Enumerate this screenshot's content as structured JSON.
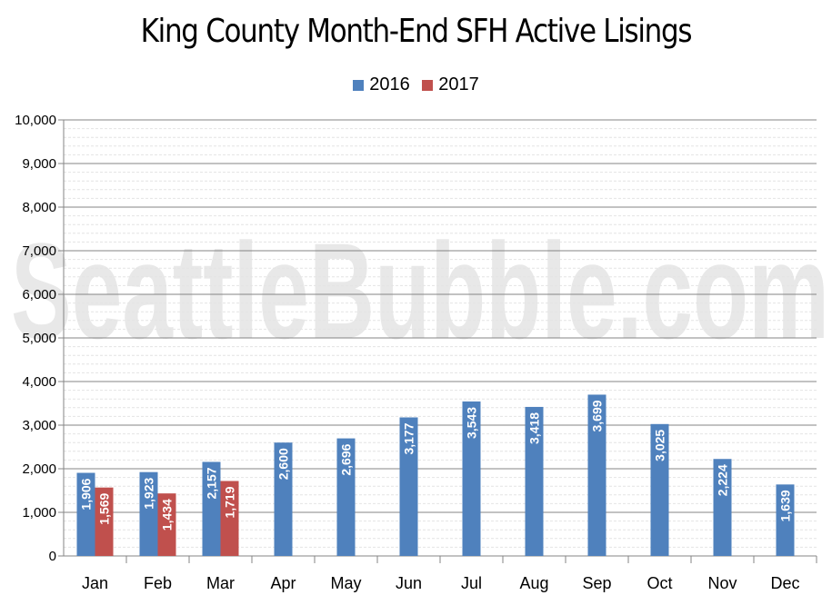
{
  "chart_data": {
    "type": "bar",
    "title": "King County Month-End SFH Active Lisings",
    "watermark": "SeattleBubble.com",
    "xlabel": "",
    "ylabel": "",
    "ylim": [
      0,
      10000
    ],
    "yticks": [
      0,
      1000,
      2000,
      3000,
      4000,
      5000,
      6000,
      7000,
      8000,
      9000,
      10000
    ],
    "ytick_labels": [
      "0",
      "1,000",
      "2,000",
      "3,000",
      "4,000",
      "5,000",
      "6,000",
      "7,000",
      "8,000",
      "9,000",
      "10,000"
    ],
    "grid": true,
    "legend_position": "top-center",
    "categories": [
      "Jan",
      "Feb",
      "Mar",
      "Apr",
      "May",
      "Jun",
      "Jul",
      "Aug",
      "Sep",
      "Oct",
      "Nov",
      "Dec"
    ],
    "series": [
      {
        "name": "2016",
        "color": "#4f81bd",
        "values": [
          1906,
          1923,
          2157,
          2600,
          2696,
          3177,
          3543,
          3418,
          3699,
          3025,
          2224,
          1639
        ],
        "labels": [
          "1,906",
          "1,923",
          "2,157",
          "2,600",
          "2,696",
          "3,177",
          "3,543",
          "3,418",
          "3,699",
          "3,025",
          "2,224",
          "1,639"
        ]
      },
      {
        "name": "2017",
        "color": "#c0504d",
        "values": [
          1569,
          1434,
          1719,
          null,
          null,
          null,
          null,
          null,
          null,
          null,
          null,
          null
        ],
        "labels": [
          "1,569",
          "1,434",
          "1,719",
          "",
          "",
          "",
          "",
          "",
          "",
          "",
          "",
          ""
        ]
      }
    ]
  }
}
